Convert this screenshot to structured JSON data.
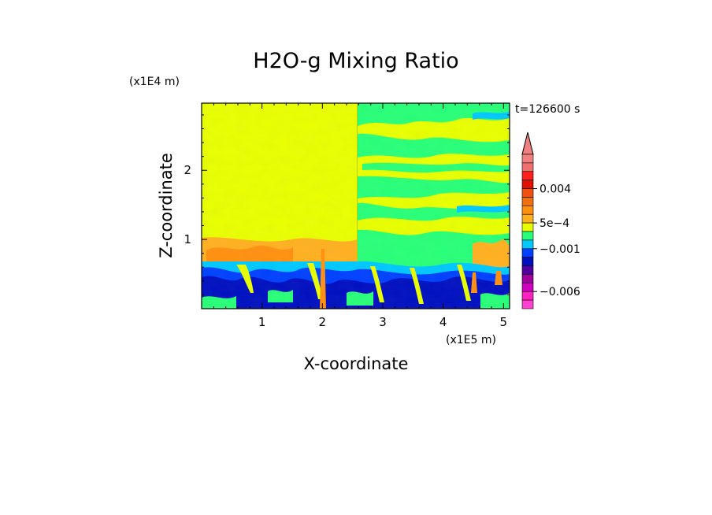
{
  "chart_data": {
    "type": "heatmap",
    "title": "H2O-g Mixing Ratio",
    "xlabel": "X-coordinate",
    "ylabel": "Z-coordinate",
    "x_unit": "(x1E5 m)",
    "y_unit": "(x1E4 m)",
    "time_label": "t=126600 s",
    "xlim": [
      0,
      5.1
    ],
    "ylim": [
      0,
      2.97
    ],
    "x_ticks": [
      "1",
      "2",
      "3",
      "4",
      "5"
    ],
    "x_tick_values": [
      1,
      2,
      3,
      4,
      5
    ],
    "y_ticks": [
      "1",
      "2"
    ],
    "y_tick_values": [
      1,
      2
    ],
    "colorbar": {
      "labels": [
        "0.004",
        "5e-4",
        "-0.001",
        "-0.006"
      ],
      "label_levels": [
        0.004,
        0.0005,
        -0.001,
        -0.006
      ],
      "levels_top_to_bottom": [
        0.007,
        0.006,
        0.005,
        0.004,
        0.003,
        0.002,
        0.001,
        0.0005,
        0,
        -0.0005,
        -0.001,
        -0.002,
        -0.003,
        -0.004,
        -0.005,
        -0.006,
        -0.007,
        -0.008
      ],
      "colors_top_to_bottom": [
        "#f08080",
        "#f07070",
        "#ff2020",
        "#e01000",
        "#f05010",
        "#f07010",
        "#ff9010",
        "#ffb020",
        "#e8ff00",
        "#28ff78",
        "#00c8ff",
        "#0040ff",
        "#0010c0",
        "#5000a0",
        "#a000a0",
        "#d000c0",
        "#ff20c0",
        "#ff40d0"
      ],
      "extends": "max"
    },
    "regions": [
      {
        "name": "upper-left uniform",
        "x": [
          0,
          2.55
        ],
        "z": [
          1.0,
          2.97
        ],
        "value": "5e-4 to 0"
      },
      {
        "name": "upper-right layered",
        "x": [
          2.55,
          5.1
        ],
        "z": [
          0.8,
          2.97
        ],
        "value": "0 to -0.001"
      },
      {
        "name": "boundary layer",
        "x": [
          0,
          5.1
        ],
        "z": [
          0,
          0.8
        ],
        "value": "-0.002 to -0.006"
      }
    ]
  }
}
